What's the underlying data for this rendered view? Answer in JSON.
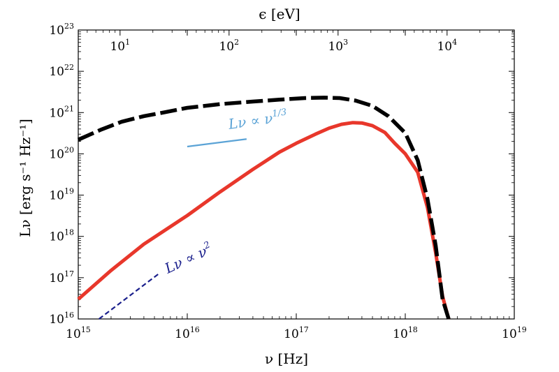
{
  "chart_data": {
    "type": "line",
    "xlabel": "ν [Hz]",
    "x2label": "ϵ [eV]",
    "ylabel": "Lν [erg s⁻¹ Hz⁻¹]",
    "xscale": "log",
    "yscale": "log",
    "xlim": [
      1000000000000000.0,
      1e+19
    ],
    "ylim": [
      1e+16,
      1e+23
    ],
    "x_tick_labels": [
      {
        "value": 1000000000000000.0,
        "base": "10",
        "exp": "15"
      },
      {
        "value": 1e+16,
        "base": "10",
        "exp": "16"
      },
      {
        "value": 1e+17,
        "base": "10",
        "exp": "17"
      },
      {
        "value": 1e+18,
        "base": "10",
        "exp": "18"
      },
      {
        "value": 1e+19,
        "base": "10",
        "exp": "19"
      }
    ],
    "y_tick_labels": [
      {
        "value": 1e+16,
        "base": "10",
        "exp": "16"
      },
      {
        "value": 1e+17,
        "base": "10",
        "exp": "17"
      },
      {
        "value": 1e+18,
        "base": "10",
        "exp": "18"
      },
      {
        "value": 1e+19,
        "base": "10",
        "exp": "19"
      },
      {
        "value": 1e+20,
        "base": "10",
        "exp": "20"
      },
      {
        "value": 1e+21,
        "base": "10",
        "exp": "21"
      },
      {
        "value": 1e+22,
        "base": "10",
        "exp": "22"
      },
      {
        "value": 1e+23,
        "base": "10",
        "exp": "23"
      }
    ],
    "x2_tick_labels": [
      {
        "value": 10,
        "base": "10",
        "exp": "1"
      },
      {
        "value": 100,
        "base": "10",
        "exp": "2"
      },
      {
        "value": 1000,
        "base": "10",
        "exp": "3"
      },
      {
        "value": 10000,
        "base": "10",
        "exp": "4"
      }
    ],
    "hz_per_ev": 241800000000000.0,
    "series": [
      {
        "style": "dashed",
        "color": "#000000",
        "x": [
          1000000000000000.0,
          1600000000000000.0,
          2500000000000000.0,
          4000000000000000.0,
          6000000000000000.0,
          1e+16,
          2e+16,
          4e+16,
          7e+16,
          1.2e+17,
          1.8e+17,
          2.5e+17,
          3.5e+17,
          5e+17,
          7e+17,
          1e+18,
          1.3e+18,
          1.6e+18,
          1.9e+18,
          2.2e+18,
          2.5e+18
        ],
        "y": [
          2.2e+20,
          3.8e+20,
          6e+20,
          8.2e+20,
          1e+21,
          1.3e+21,
          1.6e+21,
          1.85e+21,
          2.05e+21,
          2.25e+21,
          2.3e+21,
          2.25e+21,
          1.95e+21,
          1.45e+21,
          8.2e+20,
          3.2e+20,
          7e+19,
          8e+18,
          6e+17,
          3e+16,
          1e+16
        ]
      },
      {
        "style": "solid",
        "color": "#e8372b",
        "x": [
          1000000000000000.0,
          2000000000000000.0,
          4000000000000000.0,
          1e+16,
          2e+16,
          4e+16,
          7e+16,
          1e+17,
          1.5e+17,
          2e+17,
          2.6e+17,
          3.3e+17,
          4e+17,
          5e+17,
          6.5e+17,
          8e+17,
          1e+18,
          1.3e+18,
          1.6e+18,
          1.9e+18,
          2.2e+18,
          2.5e+18
        ],
        "y": [
          3e+16,
          1.5e+17,
          6.5e+17,
          3.2e+18,
          1.2e+19,
          4.2e+19,
          1.1e+20,
          1.8e+20,
          3e+20,
          4.2e+20,
          5.2e+20,
          5.7e+20,
          5.6e+20,
          4.8e+20,
          3.3e+20,
          1.8e+20,
          1e+20,
          3.6e+19,
          5e+18,
          4e+17,
          3.5e+16,
          1e+16
        ]
      }
    ],
    "reference_lines": [
      {
        "color": "#5ba3d6",
        "style": "solid",
        "x": [
          1e+16,
          3.5e+16
        ],
        "y": [
          1.5e+20,
          2.28e+20
        ]
      },
      {
        "color": "#1a1f8c",
        "style": "dashed",
        "x": [
          1550000000000000.0,
          5600000000000000.0
        ],
        "y": [
          1e+16,
          1.3e+17
        ]
      }
    ],
    "annotations": [
      {
        "base": "Lν ∝ ν",
        "sup": "1/3",
        "color": "#5ba3d6"
      },
      {
        "base": "Lν ∝ ν",
        "sup": "2",
        "color": "#1a1f8c"
      }
    ]
  }
}
